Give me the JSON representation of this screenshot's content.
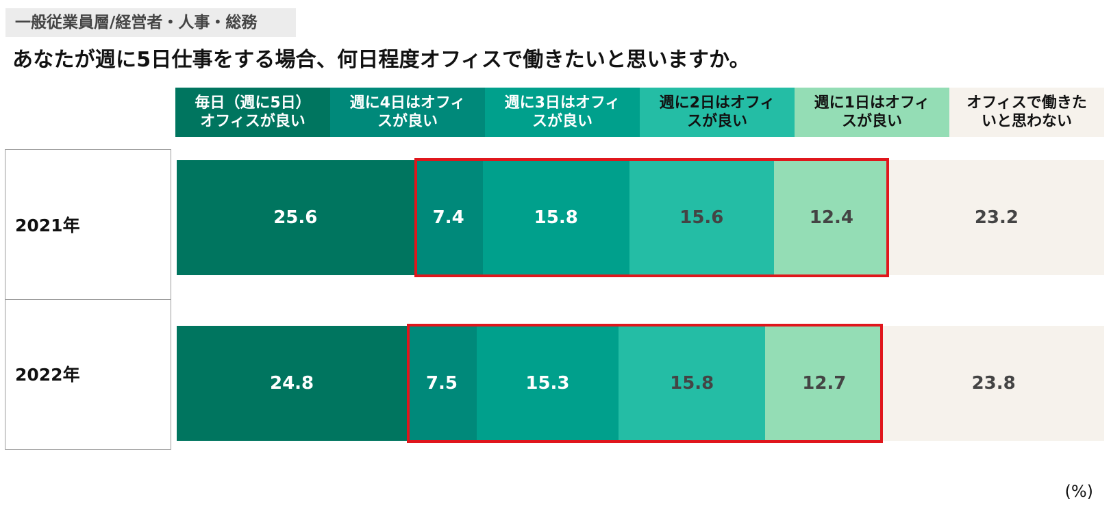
{
  "header": {
    "tag": "一般従業員層/経営者・人事・総務",
    "title": "あなたが週に5日仕事をする場合、何日程度オフィスで働きたいと思いますか。",
    "unit": "(%)"
  },
  "colors": {
    "categories": [
      "#00755f",
      "#00897a",
      "#00a08c",
      "#24bda5",
      "#94ddb5",
      "#f6f2ec"
    ],
    "label_text": [
      "#ffffff",
      "#ffffff",
      "#ffffff",
      "#111111",
      "#111111",
      "#111111"
    ],
    "value_text": [
      "#ffffff",
      "#ffffff",
      "#ffffff",
      "#444444",
      "#444444",
      "#444444"
    ],
    "highlight": "#e0161c"
  },
  "chart_data": {
    "type": "bar",
    "stacked": true,
    "orientation": "horizontal",
    "percent_total": 100,
    "categories": [
      "2021年",
      "2022年"
    ],
    "series": [
      {
        "name": "毎日（週に5日）\nオフィスが良い",
        "values": [
          25.6,
          24.8
        ]
      },
      {
        "name": "週に4日はオフィ\nスが良い",
        "values": [
          7.4,
          7.5
        ]
      },
      {
        "name": "週に3日はオフィ\nスが良い",
        "values": [
          15.8,
          15.3
        ]
      },
      {
        "name": "週に2日はオフィ\nスが良い",
        "values": [
          15.6,
          15.8
        ]
      },
      {
        "name": "週に1日はオフィ\nスが良い",
        "values": [
          12.4,
          12.7
        ]
      },
      {
        "name": "オフィスで働きた\nいと思わない",
        "values": [
          23.2,
          23.8
        ]
      }
    ],
    "highlighted_series": [
      1,
      2,
      3,
      4
    ],
    "legend_position": "top",
    "unit": "%"
  }
}
